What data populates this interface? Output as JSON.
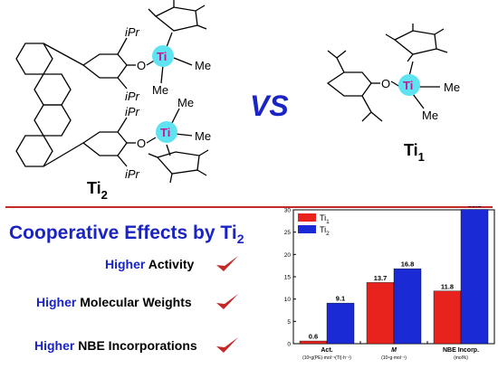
{
  "structures": {
    "left": {
      "label_main": "Ti",
      "label_sub": "2",
      "substituents": [
        "iPr",
        "iPr",
        "iPr",
        "iPr"
      ],
      "methyls": [
        "Me",
        "Me",
        "Me",
        "Me"
      ],
      "oxygen": "O",
      "metal": "Ti"
    },
    "right": {
      "label_main": "Ti",
      "label_sub": "1",
      "methyls": [
        "Me",
        "Me"
      ],
      "oxygen": "O",
      "metal": "Ti"
    },
    "vs": "VS"
  },
  "headline": {
    "text": "Cooperative Effects by Ti",
    "sub": "2"
  },
  "advantages": [
    {
      "blue": "Higher",
      "black": " Activity"
    },
    {
      "blue": "Higher",
      "black": " Molecular Weights"
    },
    {
      "blue": "Higher",
      "black": " NBE Incorporations"
    }
  ],
  "colors": {
    "accent_red": "#c62828",
    "headline_blue": "#1a23c4",
    "ti_cyan": "#5fe3f0",
    "ti_text": "#c0189a"
  },
  "chart_data": {
    "type": "bar",
    "categories": [
      "Act.",
      "M",
      "NBE Incorp."
    ],
    "category_units": [
      "(10⁶g(PE)·mol⁻¹(Ti)·h⁻¹)",
      "(10⁴g·mol⁻¹)",
      "(mol%)"
    ],
    "series": [
      {
        "name": "Ti1",
        "legend_main": "Ti",
        "legend_sub": "1",
        "color": "#e8221c",
        "values": [
          0.6,
          13.7,
          11.8
        ]
      },
      {
        "name": "Ti2",
        "legend_main": "Ti",
        "legend_sub": "2",
        "color": "#1a2bd6",
        "values": [
          9.1,
          16.8,
          30.1
        ]
      }
    ],
    "value_labels": [
      [
        "0.6",
        "13.7",
        "11.8"
      ],
      [
        "9.1",
        "16.8",
        "30.1"
      ]
    ],
    "ylim": [
      0,
      30
    ],
    "yticks": [
      "0",
      "5",
      "10",
      "15",
      "20",
      "25",
      "30"
    ],
    "legend_position": "top-left"
  }
}
